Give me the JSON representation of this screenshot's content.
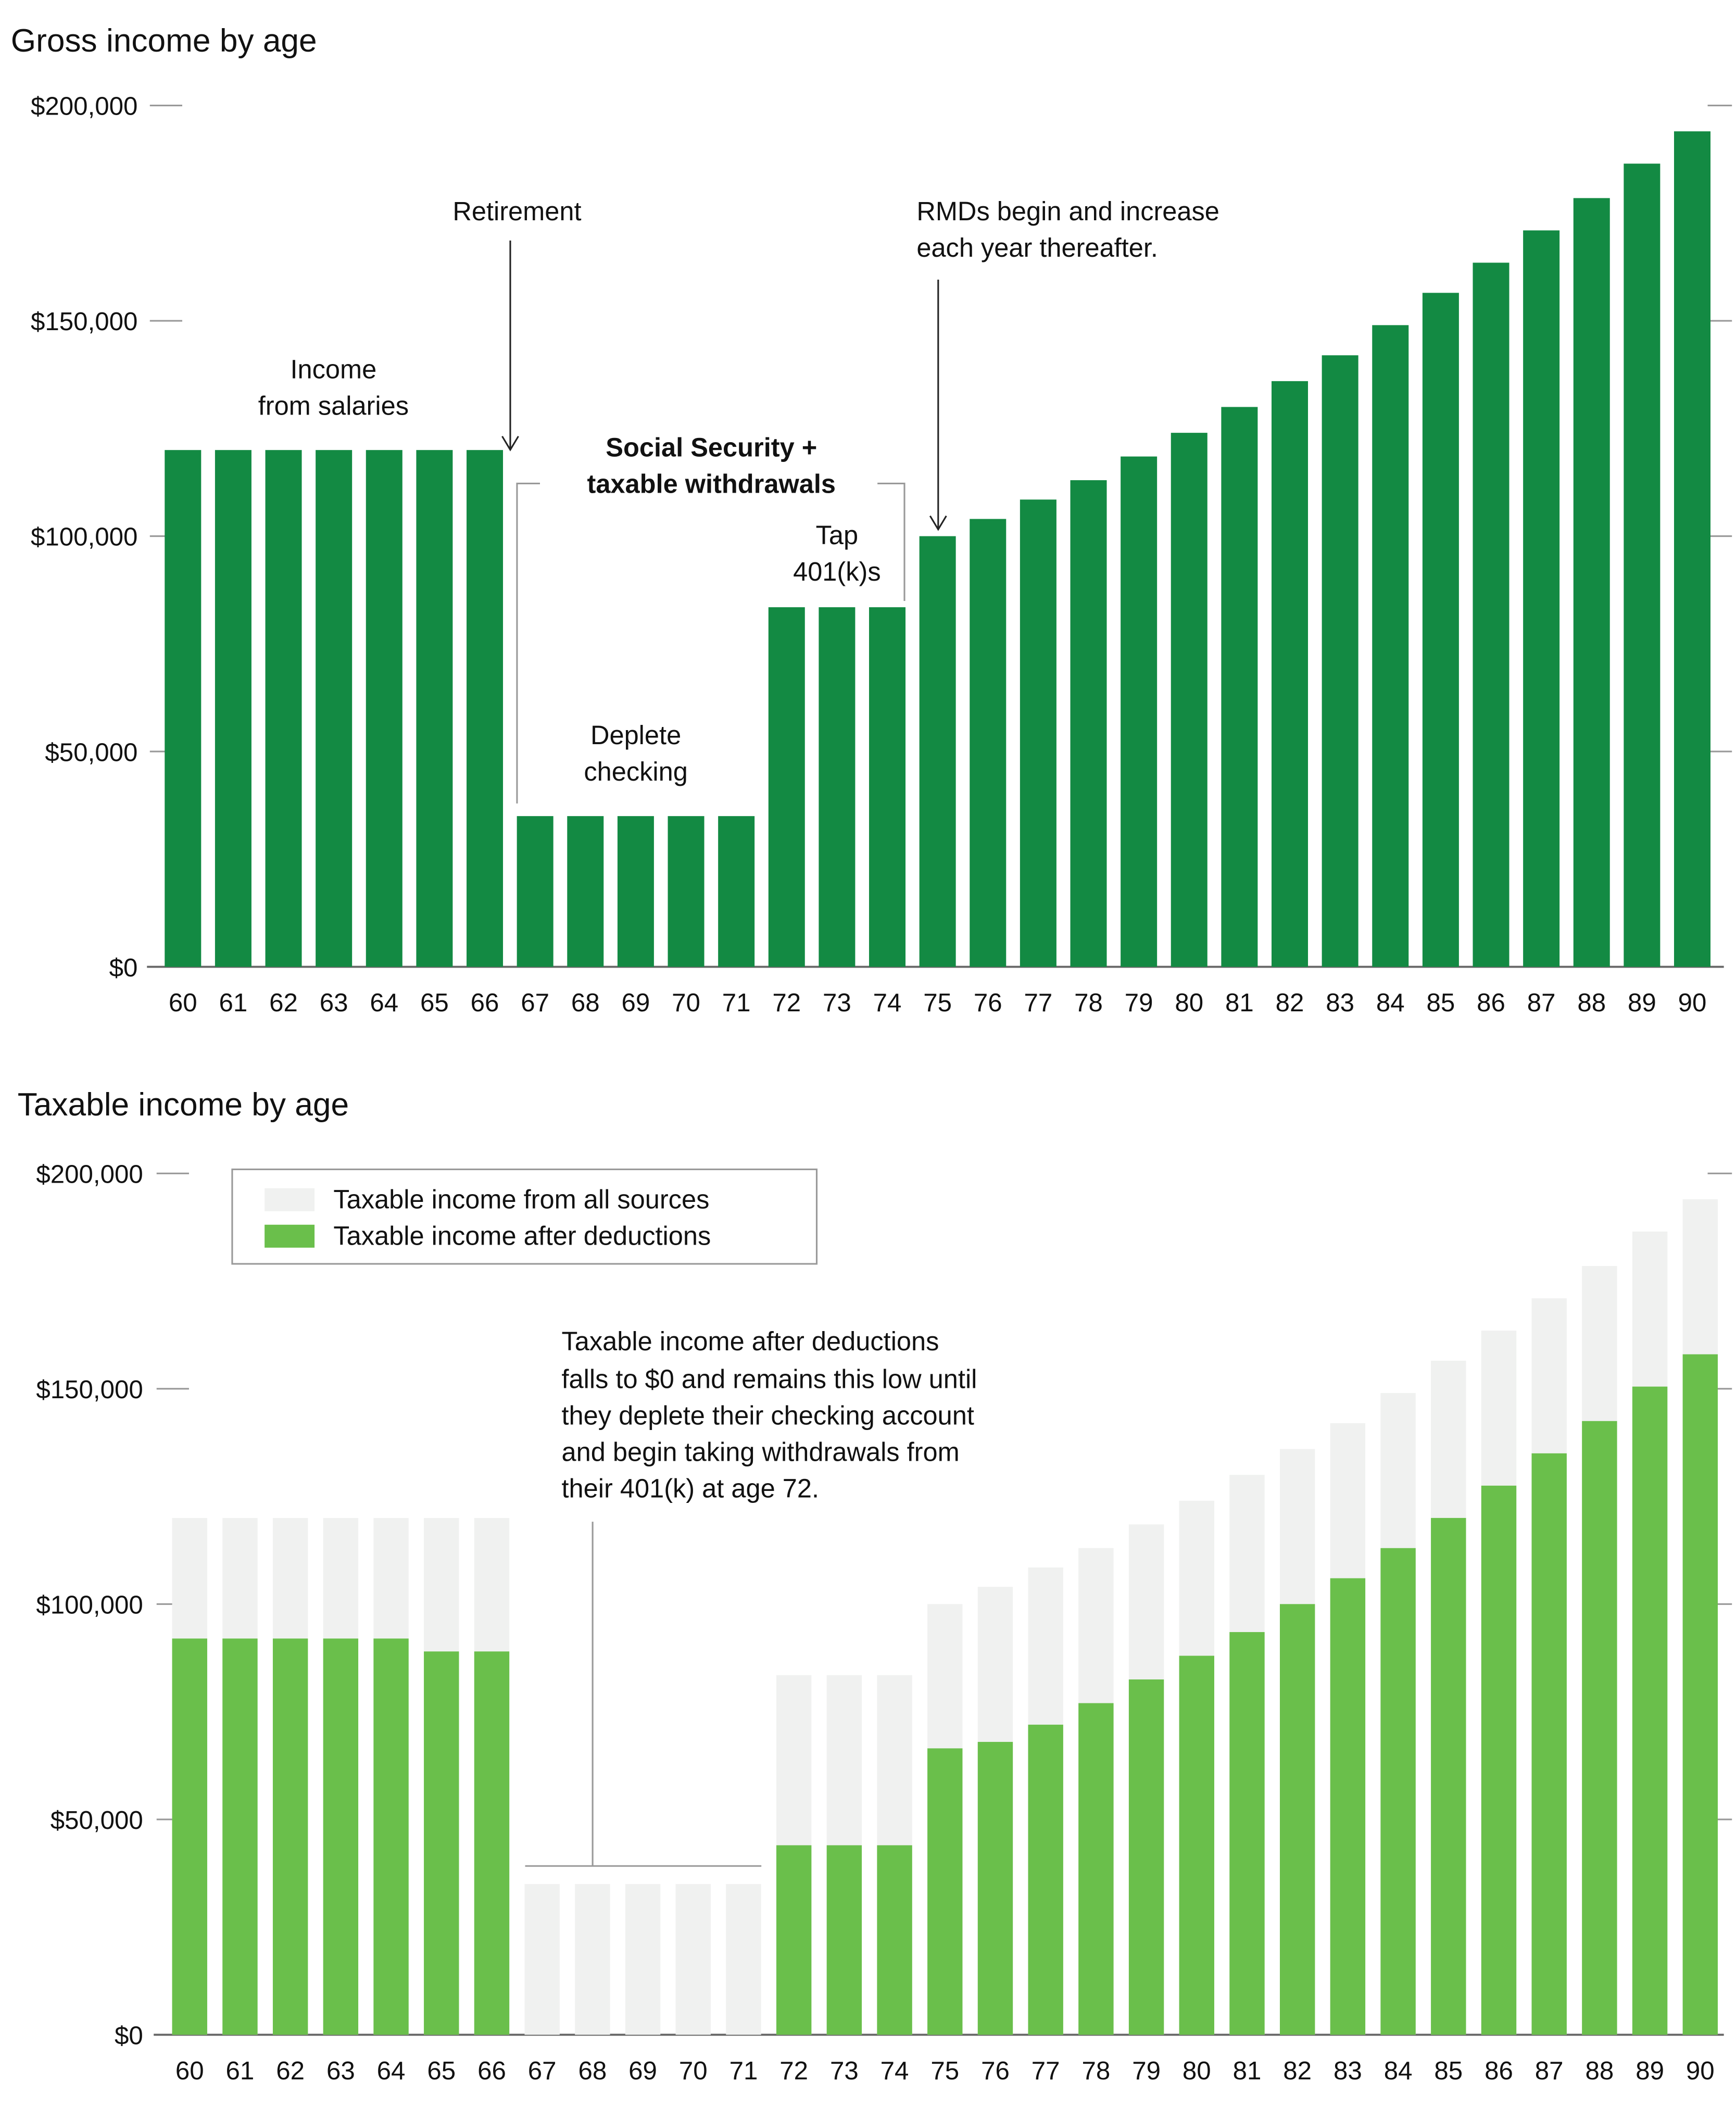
{
  "chart_data": [
    {
      "type": "bar",
      "title": "Gross income by age",
      "xlabel": "",
      "ylabel": "",
      "categories": [
        "60",
        "61",
        "62",
        "63",
        "64",
        "65",
        "66",
        "67",
        "68",
        "69",
        "70",
        "71",
        "72",
        "73",
        "74",
        "75",
        "76",
        "77",
        "78",
        "79",
        "80",
        "81",
        "82",
        "83",
        "84",
        "85",
        "86",
        "87",
        "88",
        "89",
        "90"
      ],
      "values": [
        120000,
        120000,
        120000,
        120000,
        120000,
        120000,
        120000,
        35000,
        35000,
        35000,
        35000,
        35000,
        83500,
        83500,
        83500,
        100000,
        104000,
        108500,
        113000,
        118500,
        124000,
        130000,
        136000,
        142000,
        149000,
        156500,
        163500,
        171000,
        178500,
        186500,
        194000
      ],
      "ylim": [
        0,
        200000
      ],
      "yticks": [
        "$0",
        "$50,000",
        "$100,000",
        "$150,000",
        "$200,000"
      ],
      "color": "#138a43",
      "grid": false,
      "annotations": {
        "retirement": "Retirement",
        "rmds": [
          "RMDs begin and increase",
          "each year thereafter."
        ],
        "salaries": [
          "Income",
          "from salaries"
        ],
        "ss": [
          "Social Security +",
          "taxable withdrawals"
        ],
        "deplete": [
          "Deplete",
          "checking"
        ],
        "tap": [
          "Tap",
          "401(k)s"
        ]
      }
    },
    {
      "type": "bar",
      "title": "Taxable income by age",
      "xlabel": "",
      "ylabel": "",
      "categories": [
        "60",
        "61",
        "62",
        "63",
        "64",
        "65",
        "66",
        "67",
        "68",
        "69",
        "70",
        "71",
        "72",
        "73",
        "74",
        "75",
        "76",
        "77",
        "78",
        "79",
        "80",
        "81",
        "82",
        "83",
        "84",
        "85",
        "86",
        "87",
        "88",
        "89",
        "90"
      ],
      "series": [
        {
          "name": "Taxable income from all sources",
          "color": "#f0f1f0",
          "values": [
            120000,
            120000,
            120000,
            120000,
            120000,
            120000,
            120000,
            35000,
            35000,
            35000,
            35000,
            35000,
            83500,
            83500,
            83500,
            100000,
            104000,
            108500,
            113000,
            118500,
            124000,
            130000,
            136000,
            142000,
            149000,
            156500,
            163500,
            171000,
            178500,
            186500,
            194000
          ]
        },
        {
          "name": "Taxable income after deductions",
          "color": "#6abf4b",
          "values": [
            92000,
            92000,
            92000,
            92000,
            92000,
            89000,
            89000,
            0,
            0,
            0,
            0,
            0,
            44000,
            44000,
            44000,
            66500,
            68000,
            72000,
            77000,
            82500,
            88000,
            93500,
            100000,
            106000,
            113000,
            120000,
            127500,
            135000,
            142500,
            150500,
            158000
          ]
        }
      ],
      "ylim": [
        0,
        200000
      ],
      "yticks": [
        "$0",
        "$50,000",
        "$100,000",
        "$150,000",
        "$200,000"
      ],
      "legend": "top-left",
      "grid": false,
      "annotation": [
        "Taxable income after deductions",
        "falls to $0 and remains this low until",
        "they deplete their checking account",
        "and begin taking withdrawals from",
        "their 401(k) at age 72."
      ]
    }
  ]
}
